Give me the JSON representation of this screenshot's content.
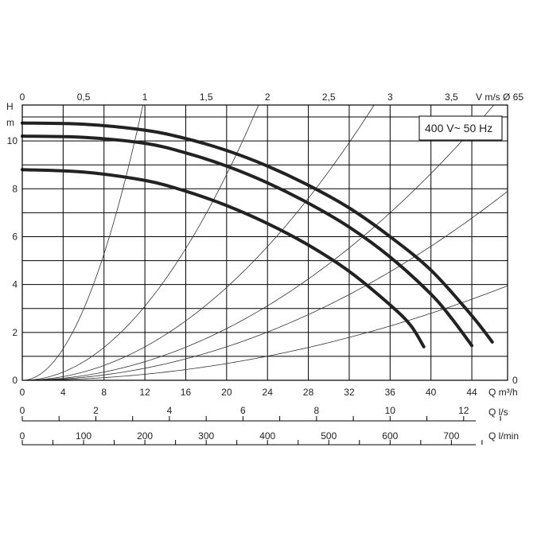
{
  "chart_data": {
    "type": "line",
    "title": "",
    "legend": "400 V~ 50 Hz",
    "y_axis": {
      "label_top": "H",
      "unit": "m",
      "range": [
        0,
        11.5
      ],
      "ticks": [
        "0",
        "2",
        "4",
        "6",
        "8",
        "10"
      ]
    },
    "x_axis_flow": {
      "label": "Q m³/h",
      "range": [
        0,
        47.5
      ],
      "ticks": [
        "0",
        "4",
        "8",
        "12",
        "16",
        "20",
        "24",
        "28",
        "32",
        "36",
        "40",
        "44"
      ]
    },
    "top_axis_velocity": {
      "label": "V m/s Ø 65",
      "ticks": [
        "0",
        "0,5",
        "1",
        "1,5",
        "2",
        "2,5",
        "3",
        "3,5"
      ],
      "m3h_per_unit": 12
    },
    "secondary_axis_ls": {
      "label": "Q l/s",
      "ticks": [
        "0",
        "2",
        "4",
        "6",
        "8",
        "10",
        "12"
      ],
      "m3h_per_unit": 3.6
    },
    "secondary_axis_lmin": {
      "label": "Q l/min",
      "ticks": [
        "0",
        "100",
        "200",
        "300",
        "400",
        "500",
        "600",
        "700"
      ],
      "m3h_per_unit": 0.06
    },
    "right_axis_zero": "0",
    "series": [
      {
        "values": [
          [
            0,
            10.75
          ],
          [
            6,
            10.7
          ],
          [
            12,
            10.45
          ],
          [
            16,
            10.1
          ],
          [
            20,
            9.6
          ],
          [
            24,
            8.95
          ],
          [
            28,
            8.15
          ],
          [
            32,
            7.2
          ],
          [
            36,
            6.0
          ],
          [
            40,
            4.6
          ],
          [
            44,
            2.7
          ],
          [
            46,
            1.6
          ]
        ]
      },
      {
        "values": [
          [
            0,
            10.2
          ],
          [
            6,
            10.15
          ],
          [
            12,
            9.9
          ],
          [
            16,
            9.5
          ],
          [
            20,
            8.95
          ],
          [
            24,
            8.25
          ],
          [
            28,
            7.4
          ],
          [
            32,
            6.4
          ],
          [
            36,
            5.15
          ],
          [
            40,
            3.6
          ],
          [
            42,
            2.6
          ],
          [
            44,
            1.45
          ]
        ]
      },
      {
        "values": [
          [
            0,
            8.8
          ],
          [
            6,
            8.7
          ],
          [
            12,
            8.35
          ],
          [
            16,
            7.9
          ],
          [
            20,
            7.3
          ],
          [
            24,
            6.55
          ],
          [
            28,
            5.65
          ],
          [
            32,
            4.55
          ],
          [
            36,
            3.15
          ],
          [
            38,
            2.3
          ],
          [
            39.3,
            1.4
          ]
        ]
      }
    ],
    "system_curves": [
      {
        "k": 0.0825
      },
      {
        "k": 0.0215
      },
      {
        "k": 0.0097
      },
      {
        "k": 0.0054
      },
      {
        "k": 0.0035
      },
      {
        "k": 0.00175
      }
    ]
  }
}
